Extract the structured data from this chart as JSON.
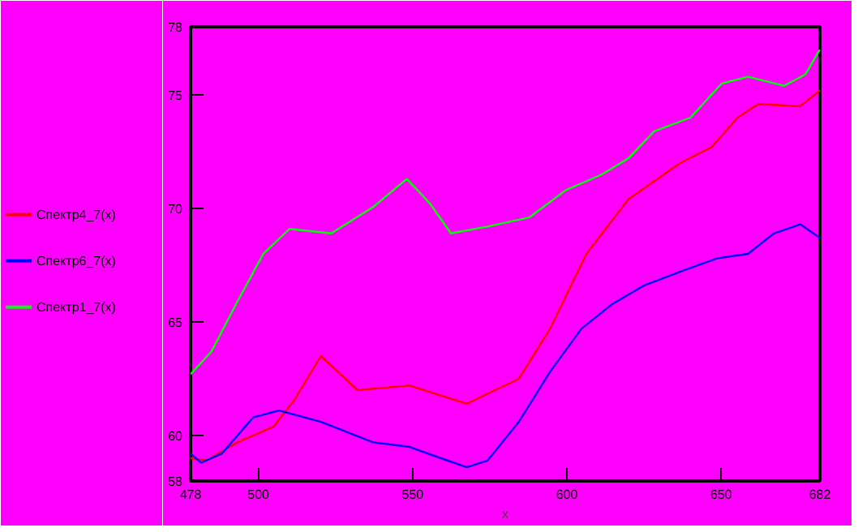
{
  "chart_data": {
    "type": "line",
    "xlabel": "x",
    "xlim": [
      478,
      682
    ],
    "ylim": [
      58,
      78
    ],
    "xticks": [
      478,
      500,
      550,
      600,
      650,
      682
    ],
    "yticks": [
      58,
      60,
      65,
      70,
      75,
      78
    ],
    "grid": false,
    "legend": "left",
    "marker": "none",
    "line_style": "solid",
    "series": [
      {
        "name": "Спектр4_7(x)",
        "color": "#ff0000",
        "x": [
          478,
          483.1,
          493.2,
          505,
          511.8,
          520.2,
          532.1,
          548.9,
          567.5,
          584.4,
          594.5,
          606.3,
          619.9,
          636.7,
          646.9,
          655.3,
          662.1,
          675.6,
          682
        ],
        "values": [
          59.0,
          58.9,
          59.7,
          60.4,
          61.6,
          63.5,
          62.0,
          62.2,
          61.4,
          62.5,
          64.7,
          68.0,
          70.4,
          72.0,
          72.7,
          74.0,
          74.6,
          74.5,
          75.2
        ]
      },
      {
        "name": "Спектр6_7(x)",
        "color": "#0000ff",
        "x": [
          478,
          481.4,
          488.1,
          498.3,
          506.7,
          520.2,
          537.1,
          548.9,
          559.1,
          567.5,
          574.3,
          584.4,
          594.5,
          604.7,
          614.8,
          624.9,
          638.4,
          648.6,
          658.7,
          667.1,
          675.6,
          682
        ],
        "values": [
          59.2,
          58.8,
          59.2,
          60.8,
          61.1,
          60.6,
          59.7,
          59.5,
          59.0,
          58.6,
          58.9,
          60.6,
          62.8,
          64.7,
          65.8,
          66.6,
          67.3,
          67.8,
          68.0,
          68.9,
          69.3,
          68.7
        ]
      },
      {
        "name": "Спектр1_7(x)",
        "color": "#00ff00",
        "x": [
          478,
          484.8,
          493.2,
          501.6,
          510.1,
          523.6,
          537.1,
          548.1,
          555.7,
          562.4,
          574.3,
          587.8,
          599.6,
          611.4,
          619.9,
          628.3,
          640.1,
          650.2,
          658.7,
          670.5,
          677.3,
          682
        ],
        "values": [
          62.7,
          63.7,
          65.9,
          68.0,
          69.1,
          68.9,
          70.05,
          71.3,
          70.2,
          68.9,
          69.2,
          69.6,
          70.8,
          71.5,
          72.2,
          73.4,
          74.0,
          75.5,
          75.8,
          75.4,
          75.9,
          77.0
        ]
      }
    ]
  }
}
